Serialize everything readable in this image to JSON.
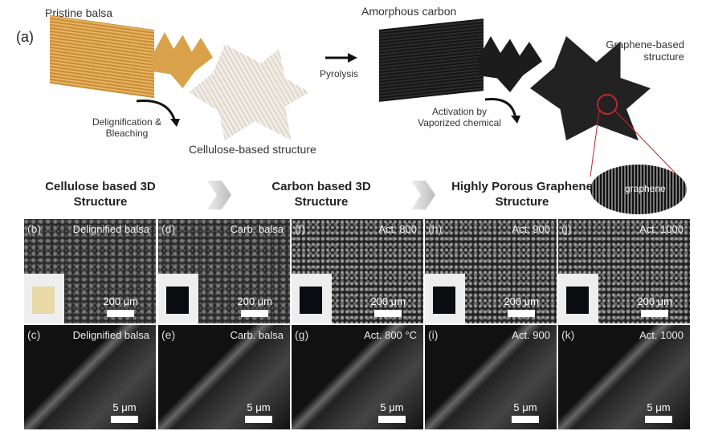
{
  "diagram": {
    "panel_label": "(a)",
    "pristine": "Pristine balsa",
    "delignification": "Delignification & Bleaching",
    "cellulose": "Cellulose-based structure",
    "pyrolysis": "Pyrolysis",
    "amorphous": "Amorphous carbon",
    "activation": "Activation by Vaporized chemical",
    "graphene_structure": "Graphene-based structure",
    "graphene_inset": "graphene",
    "colors": {
      "balsa": "#d9a24a",
      "cellulose": "#e8e2d8",
      "carbon": "#1e1e1e",
      "zoom_circle": "#c0282d"
    }
  },
  "stages": [
    "Cellulose based 3D Structure",
    "Carbon based 3D Structure",
    "Highly Porous Graphene Structure"
  ],
  "panels_top": [
    {
      "label": "(b)",
      "title": "Delignified balsa",
      "scale": "200 μm",
      "inset_color": "#e9d9a8"
    },
    {
      "label": "(d)",
      "title": "Carb. balsa",
      "scale": "200 μm",
      "inset_color": "#0b0b12"
    },
    {
      "label": "(f)",
      "title": "Act. 800",
      "scale": "200 μm",
      "inset_color": "#0b0b12"
    },
    {
      "label": "(h)",
      "title": "Act. 900",
      "scale": "200 μm",
      "inset_color": "#0b0b12"
    },
    {
      "label": "(j)",
      "title": "Act. 1000",
      "scale": "200 μm",
      "inset_color": "#0b0b12"
    }
  ],
  "panels_bottom": [
    {
      "label": "(c)",
      "title": "Delignified balsa",
      "scale": "5 μm"
    },
    {
      "label": "(e)",
      "title": "Carb. balsa",
      "scale": "5 μm"
    },
    {
      "label": "(g)",
      "title": "Act. 800 °C",
      "scale": "5 μm"
    },
    {
      "label": "(i)",
      "title": "Act. 900",
      "scale": "5 μm"
    },
    {
      "label": "(k)",
      "title": "Act. 1000",
      "scale": "5 μm"
    }
  ]
}
